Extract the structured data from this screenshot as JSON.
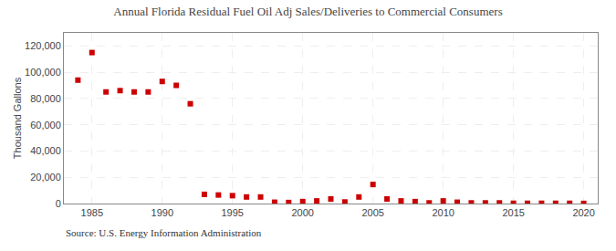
{
  "chart_data": {
    "type": "scatter",
    "title": "Annual Florida Residual Fuel Oil Adj Sales/Deliveries to Commercial Consumers",
    "ylabel": "Thousand Gallons",
    "annotations": [
      "Source: U.S. Energy Information Administration"
    ],
    "x": [
      1984,
      1985,
      1986,
      1987,
      1988,
      1989,
      1990,
      1991,
      1992,
      1993,
      1994,
      1995,
      1996,
      1997,
      1998,
      1999,
      2000,
      2001,
      2002,
      2003,
      2004,
      2005,
      2006,
      2007,
      2008,
      2009,
      2010,
      2011,
      2012,
      2013,
      2014,
      2015,
      2016,
      2017,
      2018,
      2019,
      2020
    ],
    "values": [
      94000,
      115000,
      85000,
      86000,
      85000,
      85000,
      93000,
      90000,
      76000,
      7000,
      6500,
      6000,
      5000,
      5000,
      1000,
      800,
      1500,
      2000,
      3500,
      1200,
      5000,
      14500,
      3500,
      2000,
      1500,
      500,
      2000,
      1000,
      500,
      500,
      500,
      200,
      200,
      200,
      200,
      200,
      100
    ],
    "color": "#cc0000",
    "marker": "square",
    "xlim": [
      1983,
      2021
    ],
    "ylim": [
      0,
      130000
    ],
    "xticks": [
      1985,
      1990,
      1995,
      2000,
      2005,
      2010,
      2015,
      2020
    ],
    "yticks": [
      0,
      {
        "value": 20000,
        "label": "20,000"
      },
      {
        "value": 40000,
        "label": "40,000"
      },
      {
        "value": 60000,
        "label": "60,000"
      },
      {
        "value": 80000,
        "label": "80,000"
      },
      {
        "value": 100000,
        "label": "100,000"
      },
      {
        "value": 120000,
        "label": "120,000"
      }
    ],
    "grid": true
  }
}
